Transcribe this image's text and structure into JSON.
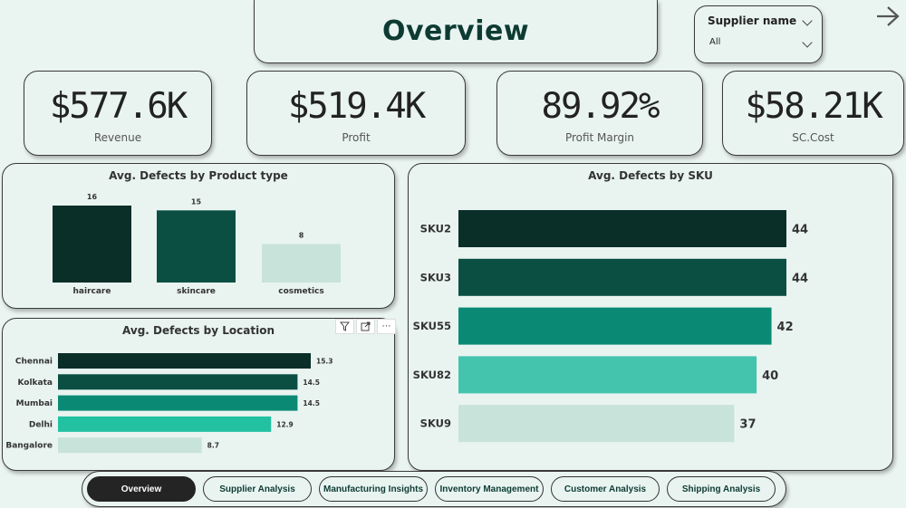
{
  "header": {
    "title": "Overview"
  },
  "slicer": {
    "label": "Supplier name",
    "value": "All"
  },
  "kpis": [
    {
      "value": "$577.6K",
      "label": "Revenue"
    },
    {
      "value": "$519.4K",
      "label": "Profit"
    },
    {
      "value": "89.92%",
      "label": "Profit Margin"
    },
    {
      "value": "$58.21K",
      "label": "SC.Cost"
    }
  ],
  "chart_data": [
    {
      "type": "bar",
      "title": "Avg. Defects by Product type",
      "categories": [
        "haircare",
        "skincare",
        "cosmetics"
      ],
      "values": [
        16,
        15,
        8
      ],
      "data_labels": [
        "16",
        "15",
        "8"
      ],
      "colors": [
        "#0a2e28",
        "#0b4f43",
        "#c8e3d9"
      ]
    },
    {
      "type": "bar",
      "orientation": "horizontal",
      "title": "Avg. Defects by Location",
      "categories": [
        "Chennai",
        "Kolkata",
        "Mumbai",
        "Delhi",
        "Bangalore"
      ],
      "values": [
        15.3,
        14.5,
        14.5,
        12.9,
        8.7
      ],
      "data_labels": [
        "15.3",
        "14.5",
        "14.5",
        "12.9",
        "8.7"
      ],
      "colors": [
        "#0a2e28",
        "#0b4f43",
        "#0a8a74",
        "#22c1a1",
        "#c8e3d9"
      ]
    },
    {
      "type": "bar",
      "orientation": "horizontal",
      "title": "Avg. Defects by SKU",
      "categories": [
        "SKU2",
        "SKU3",
        "SKU55",
        "SKU82",
        "SKU9"
      ],
      "values": [
        44,
        44,
        42,
        40,
        37
      ],
      "data_labels": [
        "44",
        "44",
        "42",
        "40",
        "37"
      ],
      "colors": [
        "#0a2e28",
        "#0b4f43",
        "#0a8a74",
        "#44c4ad",
        "#c8e3d9"
      ]
    }
  ],
  "nav": {
    "tabs": [
      {
        "label": "Overview",
        "active": true
      },
      {
        "label": "Supplier Analysis",
        "active": false
      },
      {
        "label": "Manufacturing Insights",
        "active": false
      },
      {
        "label": "Inventory Management",
        "active": false
      },
      {
        "label": "Customer Analysis",
        "active": false
      },
      {
        "label": "Shipping Analysis",
        "active": false
      }
    ]
  },
  "icons": {
    "next": "arrow-right-icon",
    "filter": "filter-icon",
    "focus": "focus-mode-icon",
    "more": "more-options-icon"
  }
}
